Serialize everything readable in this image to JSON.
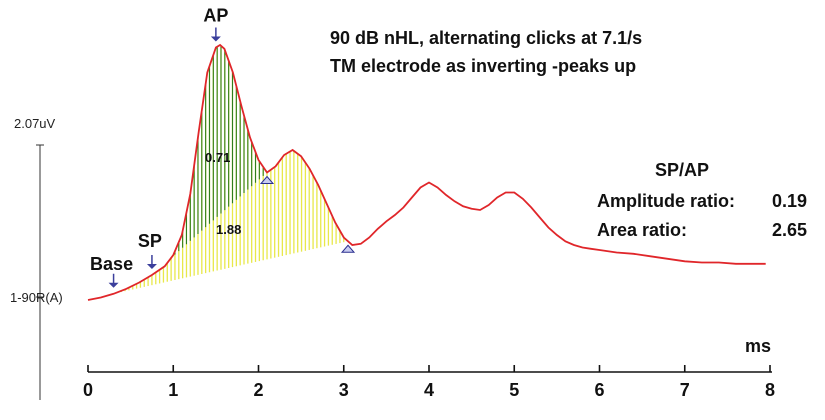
{
  "chart_data": {
    "type": "line",
    "title_lines": [
      "90 dB nHL, alternating clicks at 7.1/s",
      "TM electrode as inverting -peaks up"
    ],
    "xlabel": "ms",
    "x_ticks": [
      "0",
      "1",
      "2",
      "3",
      "4",
      "5",
      "6",
      "7",
      "8"
    ],
    "xlim": [
      0,
      8
    ],
    "y_scale_top_label": "2.07uV",
    "y_scale_ref_label": "1-90R(A)",
    "grid": false,
    "series": [
      {
        "color": "#e0262a",
        "x": [
          0,
          0.15,
          0.3,
          0.45,
          0.6,
          0.75,
          0.9,
          1.0,
          1.1,
          1.2,
          1.3,
          1.4,
          1.5,
          1.55,
          1.6,
          1.7,
          1.8,
          1.9,
          2.0,
          2.1,
          2.2,
          2.3,
          2.4,
          2.5,
          2.6,
          2.7,
          2.8,
          2.9,
          3.0,
          3.1,
          3.2,
          3.3,
          3.4,
          3.5,
          3.6,
          3.7,
          3.8,
          3.9,
          4.0,
          4.1,
          4.2,
          4.3,
          4.4,
          4.5,
          4.6,
          4.7,
          4.8,
          4.9,
          5.0,
          5.1,
          5.2,
          5.3,
          5.4,
          5.5,
          5.6,
          5.7,
          5.8,
          5.9,
          6.0,
          6.2,
          6.4,
          6.6,
          6.8,
          7.0,
          7.2,
          7.4,
          7.6,
          7.8,
          7.95
        ],
        "y": [
          0.0,
          0.02,
          0.05,
          0.09,
          0.14,
          0.2,
          0.27,
          0.36,
          0.52,
          0.85,
          1.35,
          1.82,
          2.02,
          2.04,
          2.01,
          1.82,
          1.55,
          1.3,
          1.12,
          1.02,
          1.07,
          1.16,
          1.2,
          1.15,
          1.05,
          0.92,
          0.77,
          0.62,
          0.5,
          0.44,
          0.45,
          0.5,
          0.57,
          0.63,
          0.68,
          0.74,
          0.82,
          0.9,
          0.94,
          0.9,
          0.84,
          0.79,
          0.75,
          0.73,
          0.72,
          0.76,
          0.82,
          0.86,
          0.86,
          0.81,
          0.74,
          0.66,
          0.58,
          0.52,
          0.47,
          0.44,
          0.42,
          0.41,
          0.4,
          0.38,
          0.37,
          0.35,
          0.33,
          0.31,
          0.3,
          0.3,
          0.29,
          0.29,
          0.29
        ]
      }
    ],
    "markers": [
      {
        "label": "Base",
        "x": 0.3,
        "style": "down-arrow"
      },
      {
        "label": "SP",
        "x": 0.75,
        "style": "down-arrow"
      },
      {
        "label": "AP",
        "x": 1.5,
        "style": "down-arrow"
      },
      {
        "label": "",
        "x": 2.1,
        "style": "up-triangle"
      },
      {
        "label": "",
        "x": 3.05,
        "style": "up-triangle"
      }
    ],
    "shaded_areas": [
      {
        "label": "0.71",
        "x_from": 0.75,
        "x_to": 2.1,
        "color": "#2f7d1e"
      },
      {
        "label": "1.88",
        "x_from": 0.3,
        "x_to": 3.05,
        "color": "#e8e84a"
      }
    ],
    "annotation": {
      "heading": "SP/AP",
      "rows": [
        {
          "label": "Amplitude ratio:",
          "value": "0.19"
        },
        {
          "label": "Area ratio:",
          "value": "2.65"
        }
      ]
    }
  }
}
